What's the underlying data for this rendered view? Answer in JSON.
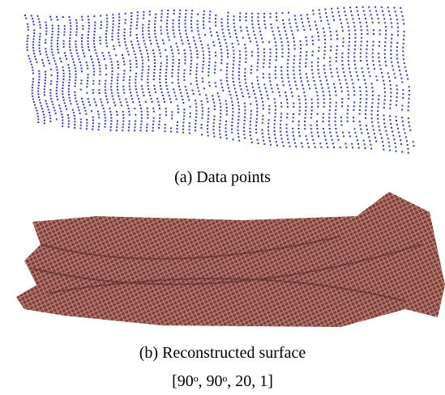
{
  "figure": {
    "panel_a": {
      "caption": "(a) Data points"
    },
    "panel_b": {
      "caption": "(b) Reconstructed surface"
    },
    "parameters": "[90ᵒ, 90ᵒ, 20, 1]"
  }
}
